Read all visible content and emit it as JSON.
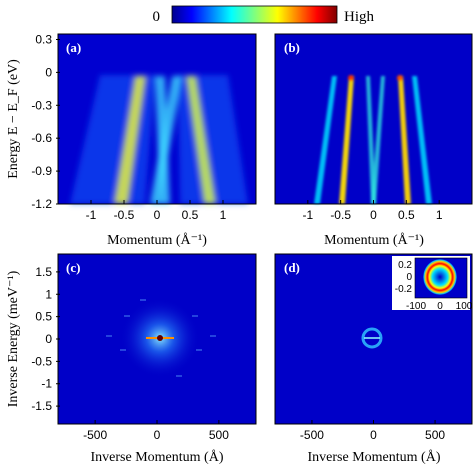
{
  "figure": {
    "colorbar": {
      "low_label": "0",
      "high_label": "High"
    }
  },
  "chart_data": [
    {
      "panel": "(a)",
      "type": "heatmap",
      "title": "",
      "xlabel": "Momentum (Å⁻¹)",
      "ylabel": "Energy  E − E_F (eV)",
      "xlim": [
        -1.5,
        1.5
      ],
      "ylim": [
        -1.2,
        0.35
      ],
      "xticks": [
        "-1",
        "-0.5",
        "0",
        "0.5",
        "1"
      ],
      "yticks": [
        "0.3",
        "0",
        "-0.3",
        "-0.6",
        "-0.9",
        "-1.2"
      ],
      "bands_k_at_EF": [
        -0.45,
        -0.3,
        0.3,
        0.45
      ],
      "description_series": [
        {
          "name": "outer band left",
          "points": [
            [
              -0.45,
              0
            ],
            [
              -0.55,
              -0.6
            ],
            [
              -0.65,
              -1.2
            ]
          ]
        },
        {
          "name": "inner band left",
          "points": [
            [
              -0.3,
              0
            ],
            [
              -0.2,
              -0.6
            ],
            [
              -0.1,
              -1.2
            ]
          ]
        },
        {
          "name": "inner band right",
          "points": [
            [
              0.3,
              0
            ],
            [
              0.2,
              -0.6
            ],
            [
              0.1,
              -1.2
            ]
          ]
        },
        {
          "name": "outer band right",
          "points": [
            [
              0.45,
              0
            ],
            [
              0.55,
              -0.6
            ],
            [
              0.65,
              -1.2
            ]
          ]
        }
      ]
    },
    {
      "panel": "(b)",
      "type": "heatmap",
      "title": "",
      "xlabel": "Momentum (Å⁻¹)",
      "ylabel": "",
      "xlim": [
        -1.5,
        1.5
      ],
      "ylim": [
        -1.2,
        0.35
      ],
      "xticks": [
        "-1",
        "-0.5",
        "0",
        "0.5",
        "1"
      ],
      "yticks": []
    },
    {
      "panel": "(c)",
      "type": "heatmap",
      "title": "",
      "xlabel": "Inverse Momentum (Å)",
      "ylabel": "Inverse Energy (meV⁻¹)",
      "xlim": [
        -800,
        800
      ],
      "ylim": [
        -1.9,
        1.9
      ],
      "xticks": [
        "-500",
        "0",
        "500"
      ],
      "yticks": [
        "1.5",
        "1",
        "0.5",
        "0",
        "-0.5",
        "-1",
        "-1.5"
      ]
    },
    {
      "panel": "(d)",
      "type": "heatmap",
      "title": "",
      "xlabel": "Inverse Momentum (Å)",
      "ylabel": "",
      "xlim": [
        -800,
        800
      ],
      "ylim": [
        -1.9,
        1.9
      ],
      "xticks": [
        "-500",
        "0",
        "500"
      ],
      "yticks": [],
      "inset": {
        "xticks": [
          "-100",
          "0",
          "100"
        ],
        "yticks": [
          "0.2",
          "0",
          "-0.2"
        ]
      }
    }
  ]
}
